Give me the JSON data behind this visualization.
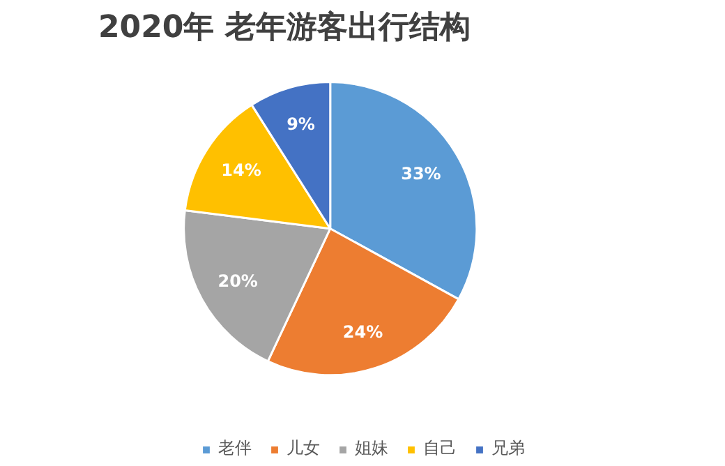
{
  "chart_data": {
    "type": "pie",
    "title": "2020年 老年游客出行结构",
    "categories": [
      "老伴",
      "儿女",
      "姐妹",
      "自己",
      "兄弟"
    ],
    "values": [
      33,
      24,
      20,
      14,
      9
    ],
    "colors": [
      "#5b9bd5",
      "#ed7d31",
      "#a5a5a5",
      "#ffc000",
      "#4472c4"
    ],
    "value_labels": [
      "33%",
      "24%",
      "20%",
      "14%",
      "9%"
    ],
    "legend": "bottom"
  }
}
